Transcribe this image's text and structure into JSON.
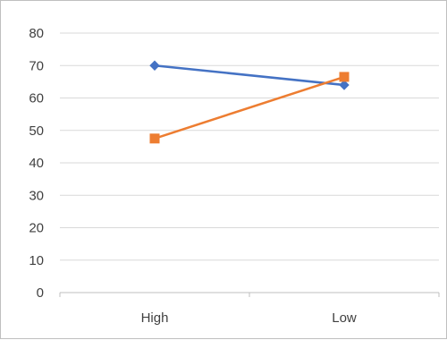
{
  "chart_data": {
    "type": "line",
    "categories": [
      "High",
      "Low"
    ],
    "series": [
      {
        "values": [
          70,
          64
        ],
        "color": "#4472c4",
        "marker": "diamond"
      },
      {
        "values": [
          47.5,
          66.5
        ],
        "color": "#ed7d31",
        "marker": "square"
      }
    ],
    "ylim": [
      0,
      80
    ],
    "y_ticks": [
      "0",
      "10",
      "20",
      "30",
      "40",
      "50",
      "60",
      "70",
      "80"
    ],
    "grid": "horizontal",
    "legend": "none"
  }
}
